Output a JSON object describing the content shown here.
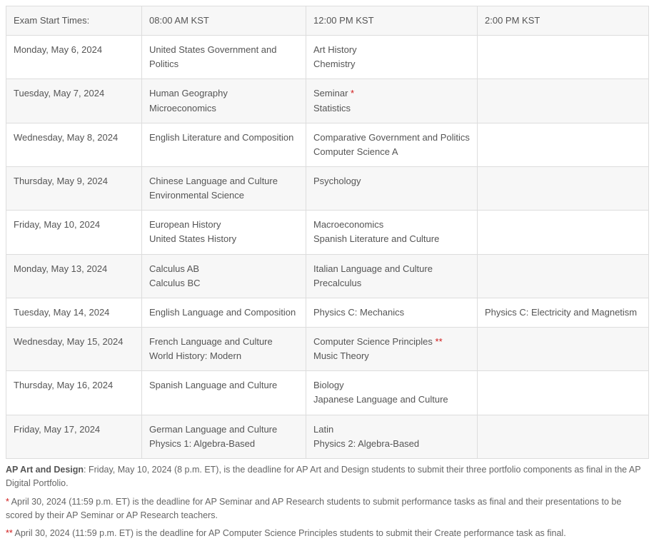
{
  "colors": {
    "border": "#dddddd",
    "alt_bg": "#f7f7f7",
    "text": "#555555",
    "star": "#d11a1a"
  },
  "columns": [
    "Exam Start Times:",
    "08:00 AM KST",
    "12:00 PM KST",
    "2:00 PM KST"
  ],
  "rows": [
    {
      "date": "Monday, May 6, 2024",
      "slot1": [
        "United States Government and Politics"
      ],
      "slot2": [
        "Art History",
        "Chemistry"
      ],
      "slot3": []
    },
    {
      "date": "Tuesday, May 7, 2024",
      "slot1": [
        "Human Geography",
        "Microeconomics"
      ],
      "slot2_special": [
        {
          "text": "Seminar",
          "mark": "*"
        },
        {
          "text": "Statistics"
        }
      ],
      "slot3": []
    },
    {
      "date": "Wednesday, May 8, 2024",
      "slot1": [
        "English Literature and Composition"
      ],
      "slot2": [
        "Comparative Government and Politics",
        "Computer Science A"
      ],
      "slot3": []
    },
    {
      "date": "Thursday, May 9, 2024",
      "slot1": [
        "Chinese Language and Culture",
        "Environmental Science"
      ],
      "slot2": [
        "Psychology"
      ],
      "slot3": []
    },
    {
      "date": "Friday, May 10, 2024",
      "slot1": [
        "European History",
        "United States History"
      ],
      "slot2": [
        "Macroeconomics",
        "Spanish Literature and Culture"
      ],
      "slot3": []
    },
    {
      "date": "Monday, May 13, 2024",
      "slot1": [
        "Calculus AB",
        "Calculus BC"
      ],
      "slot2": [
        "Italian Language and Culture",
        "Precalculus"
      ],
      "slot3": []
    },
    {
      "date": "Tuesday, May 14, 2024",
      "slot1": [
        "English Language and Composition"
      ],
      "slot2": [
        "Physics C: Mechanics"
      ],
      "slot3": [
        "Physics C: Electricity and Magnetism"
      ]
    },
    {
      "date": "Wednesday, May 15, 2024",
      "slot1": [
        "French Language and Culture",
        "World History: Modern"
      ],
      "slot2_special": [
        {
          "text": "Computer Science Principles",
          "mark": "**"
        },
        {
          "text": "Music Theory"
        }
      ],
      "slot3": []
    },
    {
      "date": "Thursday, May 16, 2024",
      "slot1": [
        "Spanish Language and Culture"
      ],
      "slot2": [
        "Biology",
        "Japanese Language and Culture"
      ],
      "slot3": []
    },
    {
      "date": "Friday, May 17, 2024",
      "slot1": [
        "German Language and Culture",
        "Physics 1: Algebra-Based"
      ],
      "slot2": [
        "Latin",
        "Physics 2: Algebra-Based"
      ],
      "slot3": []
    }
  ],
  "footnotes": {
    "art_design_label": "AP Art and Design",
    "art_design_text": ": Friday, May 10, 2024 (8 p.m. ET), is the deadline for AP Art and Design students to submit their three portfolio components as final in the AP Digital Portfolio.",
    "star1_mark": "*",
    "star1_text": " April 30, 2024 (11:59 p.m. ET) is the deadline for AP Seminar and AP Research students to submit performance tasks as final and their presentations to be scored by their AP Seminar or AP Research teachers.",
    "star2_mark": "**",
    "star2_text": " April 30, 2024 (11:59 p.m. ET) is the deadline for AP Computer Science Principles students to submit their Create performance task as final."
  }
}
